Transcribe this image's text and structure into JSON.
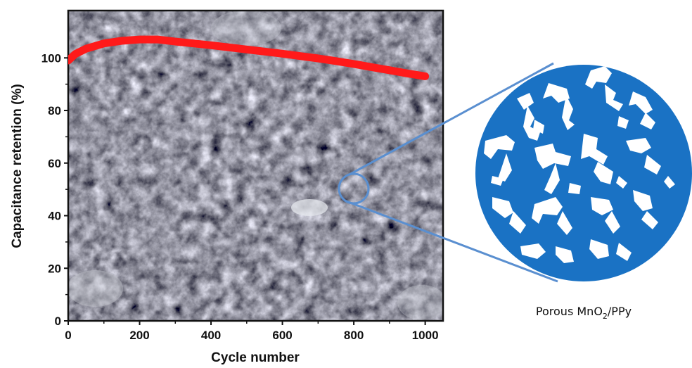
{
  "chart_data": {
    "type": "line",
    "xlabel": "Cycle number",
    "ylabel": "Capacitance retention (%)",
    "xlim": [
      0,
      1050
    ],
    "ylim": [
      0,
      118
    ],
    "xticks": [
      "0",
      "200",
      "400",
      "600",
      "800",
      "1000"
    ],
    "yticks": [
      "0",
      "20",
      "40",
      "60",
      "80",
      "100"
    ],
    "grid": false,
    "legend": "none",
    "series": [
      {
        "color": "#ff1a1a",
        "x": [
          0,
          20,
          50,
          100,
          150,
          200,
          250,
          300,
          350,
          400,
          450,
          500,
          550,
          600,
          650,
          700,
          750,
          800,
          850,
          900,
          950,
          1000
        ],
        "y": [
          99,
          101.5,
          103.5,
          105.5,
          106.5,
          107,
          107,
          106.2,
          105.5,
          104.8,
          104,
          103.2,
          102.4,
          101.6,
          100.7,
          99.8,
          98.8,
          97.7,
          96.5,
          95.3,
          94.1,
          93
        ]
      }
    ],
    "background": "SEM micrograph of porous MnO2/PPy film"
  },
  "inset": {
    "caption_prefix": "Porous MnO",
    "caption_sub": "2",
    "caption_suffix": "/PPy",
    "fill_color": "#1a72c4",
    "pore_color": "#ffffff",
    "connector_color": "#5a8fd0"
  }
}
